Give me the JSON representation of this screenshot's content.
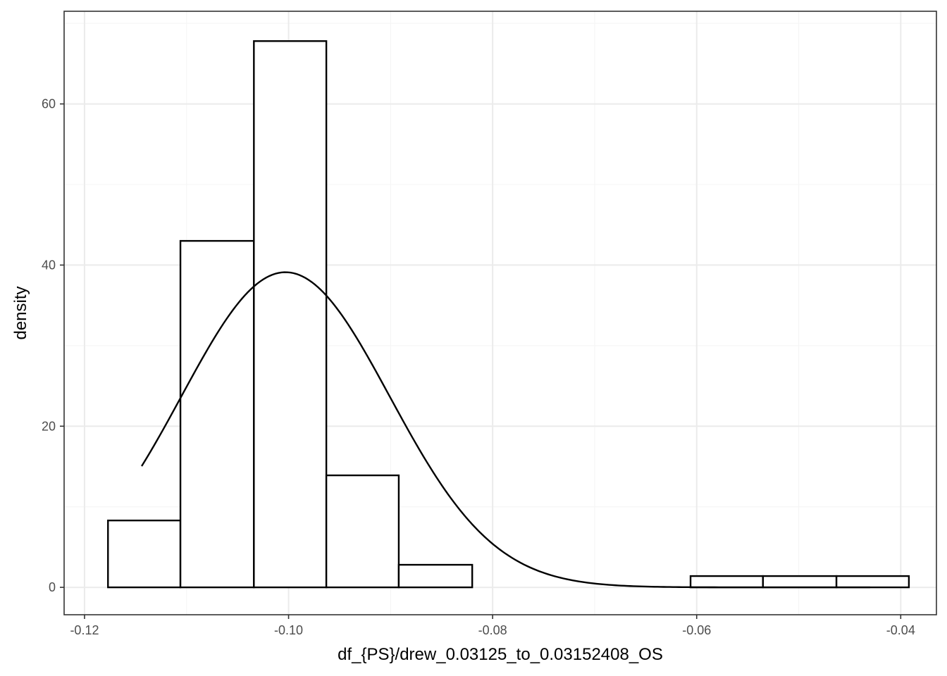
{
  "chart_data": {
    "type": "bar",
    "title": "",
    "xlabel": "df_{PS}/drew_0.03125_to_0.03152408_OS",
    "ylabel": "density",
    "xlim": [
      -0.122,
      -0.0365
    ],
    "ylim": [
      -3.4,
      71.5
    ],
    "x_ticks": [
      -0.12,
      -0.1,
      -0.08,
      -0.06,
      -0.04
    ],
    "x_tick_labels": [
      "-0.12",
      "-0.10",
      "-0.08",
      "-0.06",
      "-0.04"
    ],
    "x_minor_ticks": [
      -0.11,
      -0.09,
      -0.07,
      -0.05
    ],
    "y_ticks": [
      0,
      20,
      40,
      60
    ],
    "y_tick_labels": [
      "0",
      "20",
      "40",
      "60"
    ],
    "y_minor_ticks": [
      10,
      30,
      50,
      70
    ],
    "grid": true,
    "bins": [
      {
        "x0": -0.1177,
        "x1": -0.1106,
        "density": 8.3
      },
      {
        "x0": -0.1106,
        "x1": -0.1034,
        "density": 43.0
      },
      {
        "x0": -0.1034,
        "x1": -0.0963,
        "density": 67.8
      },
      {
        "x0": -0.0963,
        "x1": -0.0892,
        "density": 13.9
      },
      {
        "x0": -0.0892,
        "x1": -0.082,
        "density": 2.8
      },
      {
        "x0": -0.082,
        "x1": -0.0749,
        "density": 0
      },
      {
        "x0": -0.0749,
        "x1": -0.0677,
        "density": 0
      },
      {
        "x0": -0.0677,
        "x1": -0.0606,
        "density": 0
      },
      {
        "x0": -0.0606,
        "x1": -0.0535,
        "density": 1.4
      },
      {
        "x0": -0.0535,
        "x1": -0.0463,
        "density": 1.4
      },
      {
        "x0": -0.0463,
        "x1": -0.0392,
        "density": 1.4
      }
    ],
    "density_curve": {
      "type": "normal",
      "mean": -0.1003,
      "sd": 0.0102,
      "x_range": [
        -0.1144,
        -0.043
      ]
    },
    "colors": {
      "bar_fill": "#ffffff",
      "bar_stroke": "#000000",
      "curve": "#000000",
      "grid_major": "#ebebeb",
      "grid_minor": "#f5f5f5",
      "panel_border": "#333333"
    }
  }
}
